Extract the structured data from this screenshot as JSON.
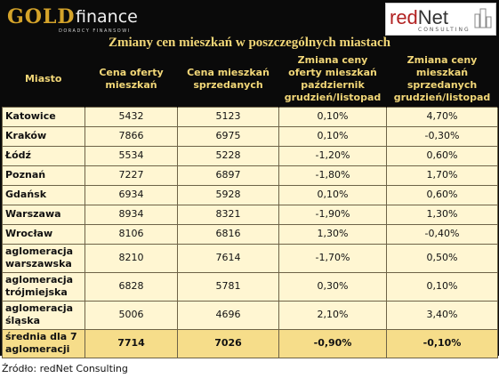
{
  "header": {
    "logo_gold": "GOLD",
    "logo_finance": "finance",
    "logo_gold_sub": "DORADCY FINANSOWI",
    "logo_rednet_red": "red",
    "logo_rednet_net": "Net",
    "logo_rednet_sub": "CONSULTING",
    "title": "Zmiany cen mieszkań w poszczególnych miastach"
  },
  "table": {
    "columns": [
      "Miasto",
      "Cena oferty mieszkań",
      "Cena mieszkań sprzedanych",
      "Zmiana ceny oferty mieszkań październik grudzień/listopad",
      "Zmiana ceny mieszkań sprzedanych grudzień/listopad"
    ],
    "rows": [
      {
        "city": "Katowice",
        "offer": "5432",
        "sold": "5123",
        "offer_change": "0,10%",
        "sold_change": "4,70%"
      },
      {
        "city": "Kraków",
        "offer": "7866",
        "sold": "6975",
        "offer_change": "0,10%",
        "sold_change": "-0,30%"
      },
      {
        "city": "Łódź",
        "offer": "5534",
        "sold": "5228",
        "offer_change": "-1,20%",
        "sold_change": "0,60%"
      },
      {
        "city": "Poznań",
        "offer": "7227",
        "sold": "6897",
        "offer_change": "-1,80%",
        "sold_change": "1,70%"
      },
      {
        "city": "Gdańsk",
        "offer": "6934",
        "sold": "5928",
        "offer_change": "0,10%",
        "sold_change": "0,60%"
      },
      {
        "city": "Warszawa",
        "offer": "8934",
        "sold": "8321",
        "offer_change": "-1,90%",
        "sold_change": "1,30%"
      },
      {
        "city": "Wrocław",
        "offer": "8106",
        "sold": "6816",
        "offer_change": "1,30%",
        "sold_change": "-0,40%"
      },
      {
        "city": "aglomeracja warszawska",
        "offer": "8210",
        "sold": "7614",
        "offer_change": "-1,70%",
        "sold_change": "0,50%"
      },
      {
        "city": "aglomeracja trójmiejska",
        "offer": "6828",
        "sold": "5781",
        "offer_change": "0,30%",
        "sold_change": "0,10%"
      },
      {
        "city": "aglomeracja śląska",
        "offer": "5006",
        "sold": "4696",
        "offer_change": "2,10%",
        "sold_change": "3,40%"
      },
      {
        "city": "średnia dla 7 aglomeracji",
        "offer": "7714",
        "sold": "7026",
        "offer_change": "-0,90%",
        "sold_change": "-0,10%"
      }
    ]
  },
  "source": "Źródło: redNet Consulting",
  "colors": {
    "background": "#0a0a0a",
    "header_text": "#f2d778",
    "cell_bg": "#fff6d2",
    "average_bg": "#f6dd8a",
    "gold": "#d4a32a",
    "rednet": "#b22222"
  }
}
